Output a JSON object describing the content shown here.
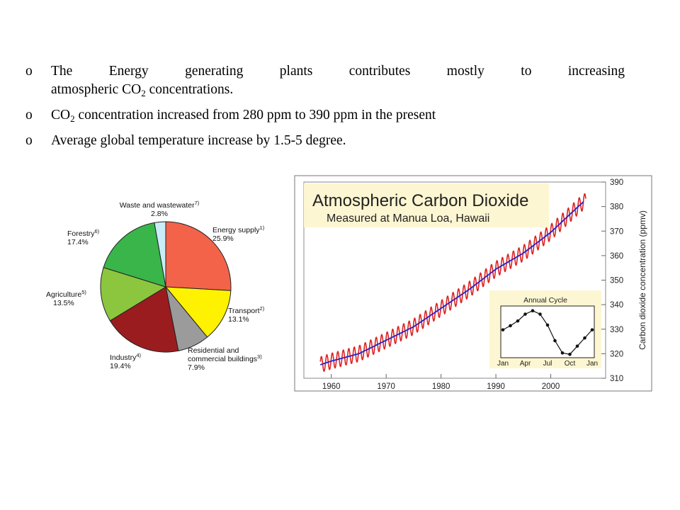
{
  "bullets": [
    {
      "marker": "o",
      "line1": "The Energy generating plants contributes mostly to increasing",
      "line2_pre": "atmospheric CO",
      "line2_sub": "2",
      "line2_post": " concentrations."
    },
    {
      "marker": "o",
      "pre": "CO",
      "sub": "2",
      "post": " concentration increased from 280 ppm to 390 ppm in the present"
    },
    {
      "marker": "o",
      "text": "Average global temperature increase by 1.5-5 degree."
    }
  ],
  "chart_data": [
    {
      "type": "pie",
      "title": "",
      "slices": [
        {
          "label": "Energy supply",
          "sup": "1)",
          "value": 25.9,
          "display": "25.9%",
          "color": "#f26349"
        },
        {
          "label": "Transport",
          "sup": "2)",
          "value": 13.1,
          "display": "13.1%",
          "color": "#fef200"
        },
        {
          "label": "Residential and commercial buildings",
          "label_lines": [
            "Residential and",
            "commercial buildings"
          ],
          "sup": "3)",
          "value": 7.9,
          "display": "7.9%",
          "color": "#9b9b9b"
        },
        {
          "label": "Industry",
          "sup": "4)",
          "value": 19.4,
          "display": "19.4%",
          "color": "#9b1c1f"
        },
        {
          "label": "Agriculture",
          "sup": "5)",
          "value": 13.5,
          "display": "13.5%",
          "color": "#8cc63e"
        },
        {
          "label": "Forestry",
          "sup": "6)",
          "value": 17.4,
          "display": "17.4%",
          "color": "#39b54a"
        },
        {
          "label": "Waste and wastewater",
          "sup": "7)",
          "value": 2.8,
          "display": "2.8%",
          "color": "#c9ecf8"
        }
      ]
    },
    {
      "type": "line",
      "title": "Atmospheric Carbon Dioxide",
      "subtitle": "Measured at Manua Loa, Hawaii",
      "xlabel": "",
      "ylabel": "Carbon dioxide concentration (ppmv)",
      "xlim": [
        1955,
        2010
      ],
      "ylim": [
        310,
        390
      ],
      "xticks": [
        1960,
        1970,
        1980,
        1990,
        2000
      ],
      "yticks": [
        310,
        320,
        330,
        340,
        350,
        360,
        370,
        380,
        390
      ],
      "series": [
        {
          "role": "monthly",
          "color": "#dd2222",
          "seasonal_amplitude": 3.2,
          "x": [
            1958,
            1960,
            1965,
            1970,
            1975,
            1980,
            1985,
            1990,
            1995,
            2000,
            2005,
            2006
          ],
          "y": [
            315.5,
            317,
            320,
            325.5,
            331,
            338.5,
            346,
            354.5,
            361,
            369.5,
            380,
            382
          ]
        },
        {
          "role": "annual mean",
          "color": "#2222cc",
          "x": [
            1958,
            1960,
            1965,
            1970,
            1975,
            1980,
            1985,
            1990,
            1995,
            2000,
            2005,
            2006
          ],
          "y": [
            315.5,
            317,
            320,
            325.5,
            331,
            338.5,
            346,
            354.5,
            361,
            369.5,
            380,
            382
          ]
        }
      ],
      "inset": {
        "type": "line",
        "title": "Annual Cycle",
        "xticks": [
          "Jan",
          "Apr",
          "Jul",
          "Oct",
          "Jan"
        ],
        "x": [
          1,
          2,
          3,
          4,
          5,
          6,
          7,
          8,
          9,
          10,
          11,
          12,
          13
        ],
        "y": [
          0.3,
          0.9,
          1.6,
          2.6,
          3.1,
          2.6,
          1.0,
          -1.3,
          -3.1,
          -3.3,
          -2.1,
          -0.9,
          0.3
        ]
      }
    }
  ]
}
